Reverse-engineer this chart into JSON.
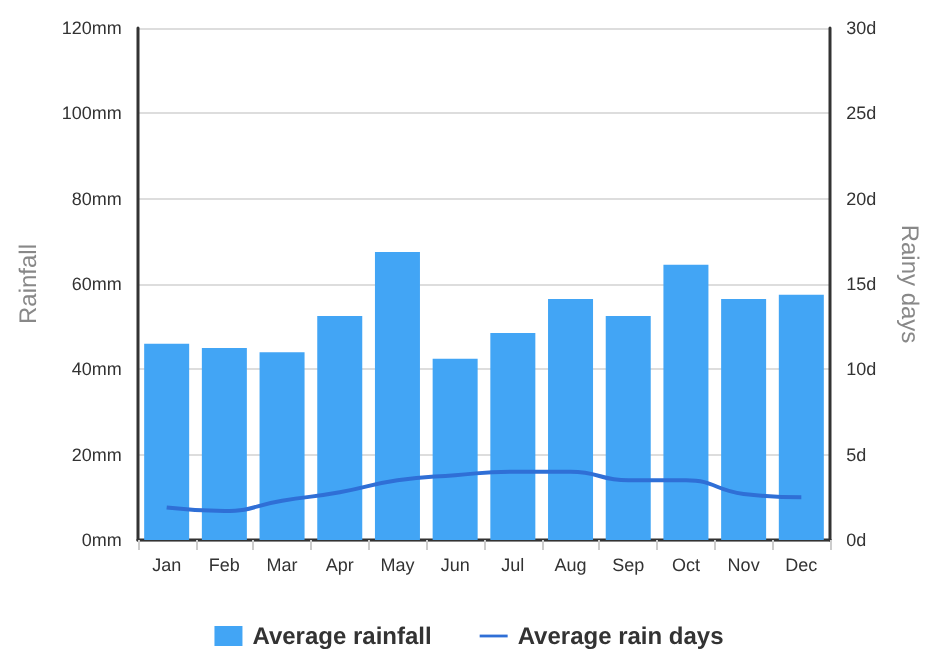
{
  "chart_data": {
    "type": "bar",
    "categories": [
      "Jan",
      "Feb",
      "Mar",
      "Apr",
      "May",
      "Jun",
      "Jul",
      "Aug",
      "Sep",
      "Oct",
      "Nov",
      "Dec"
    ],
    "series": [
      {
        "name": "Average rainfall",
        "color": "#42a5f5",
        "values": [
          46,
          45,
          44,
          52.5,
          67.5,
          42.5,
          48.5,
          56.5,
          52.5,
          64.5,
          56.5,
          57.5
        ]
      },
      {
        "name": "Average rain days",
        "type": "line",
        "axis": "y2",
        "color": "#2f6fd6",
        "values": [
          1.9,
          1.7,
          2.3,
          2.8,
          3.5,
          3.8,
          4,
          4,
          3.5,
          3.5,
          2.7,
          2.5
        ]
      }
    ],
    "ylabel": "Rainfall",
    "y2label": "Rainy days",
    "ylim": [
      0,
      120
    ],
    "yticks": [
      {
        "value": 0,
        "label": "0mm"
      },
      {
        "value": 20,
        "label": "20mm"
      },
      {
        "value": 40,
        "label": "40mm"
      },
      {
        "value": 60,
        "label": "60mm"
      },
      {
        "value": 80,
        "label": "80mm"
      },
      {
        "value": 100,
        "label": "100mm"
      },
      {
        "value": 120,
        "label": "120mm"
      }
    ],
    "y2lim": [
      0,
      30
    ],
    "y2ticks": [
      {
        "value": 0,
        "label": "0d"
      },
      {
        "value": 5,
        "label": "5d"
      },
      {
        "value": 10,
        "label": "10d"
      },
      {
        "value": 15,
        "label": "15d"
      },
      {
        "value": 20,
        "label": "20d"
      },
      {
        "value": 25,
        "label": "25d"
      },
      {
        "value": 30,
        "label": "30d"
      }
    ],
    "grid": "y",
    "legend": "bottom",
    "marker": "none",
    "line_style": "solid"
  }
}
